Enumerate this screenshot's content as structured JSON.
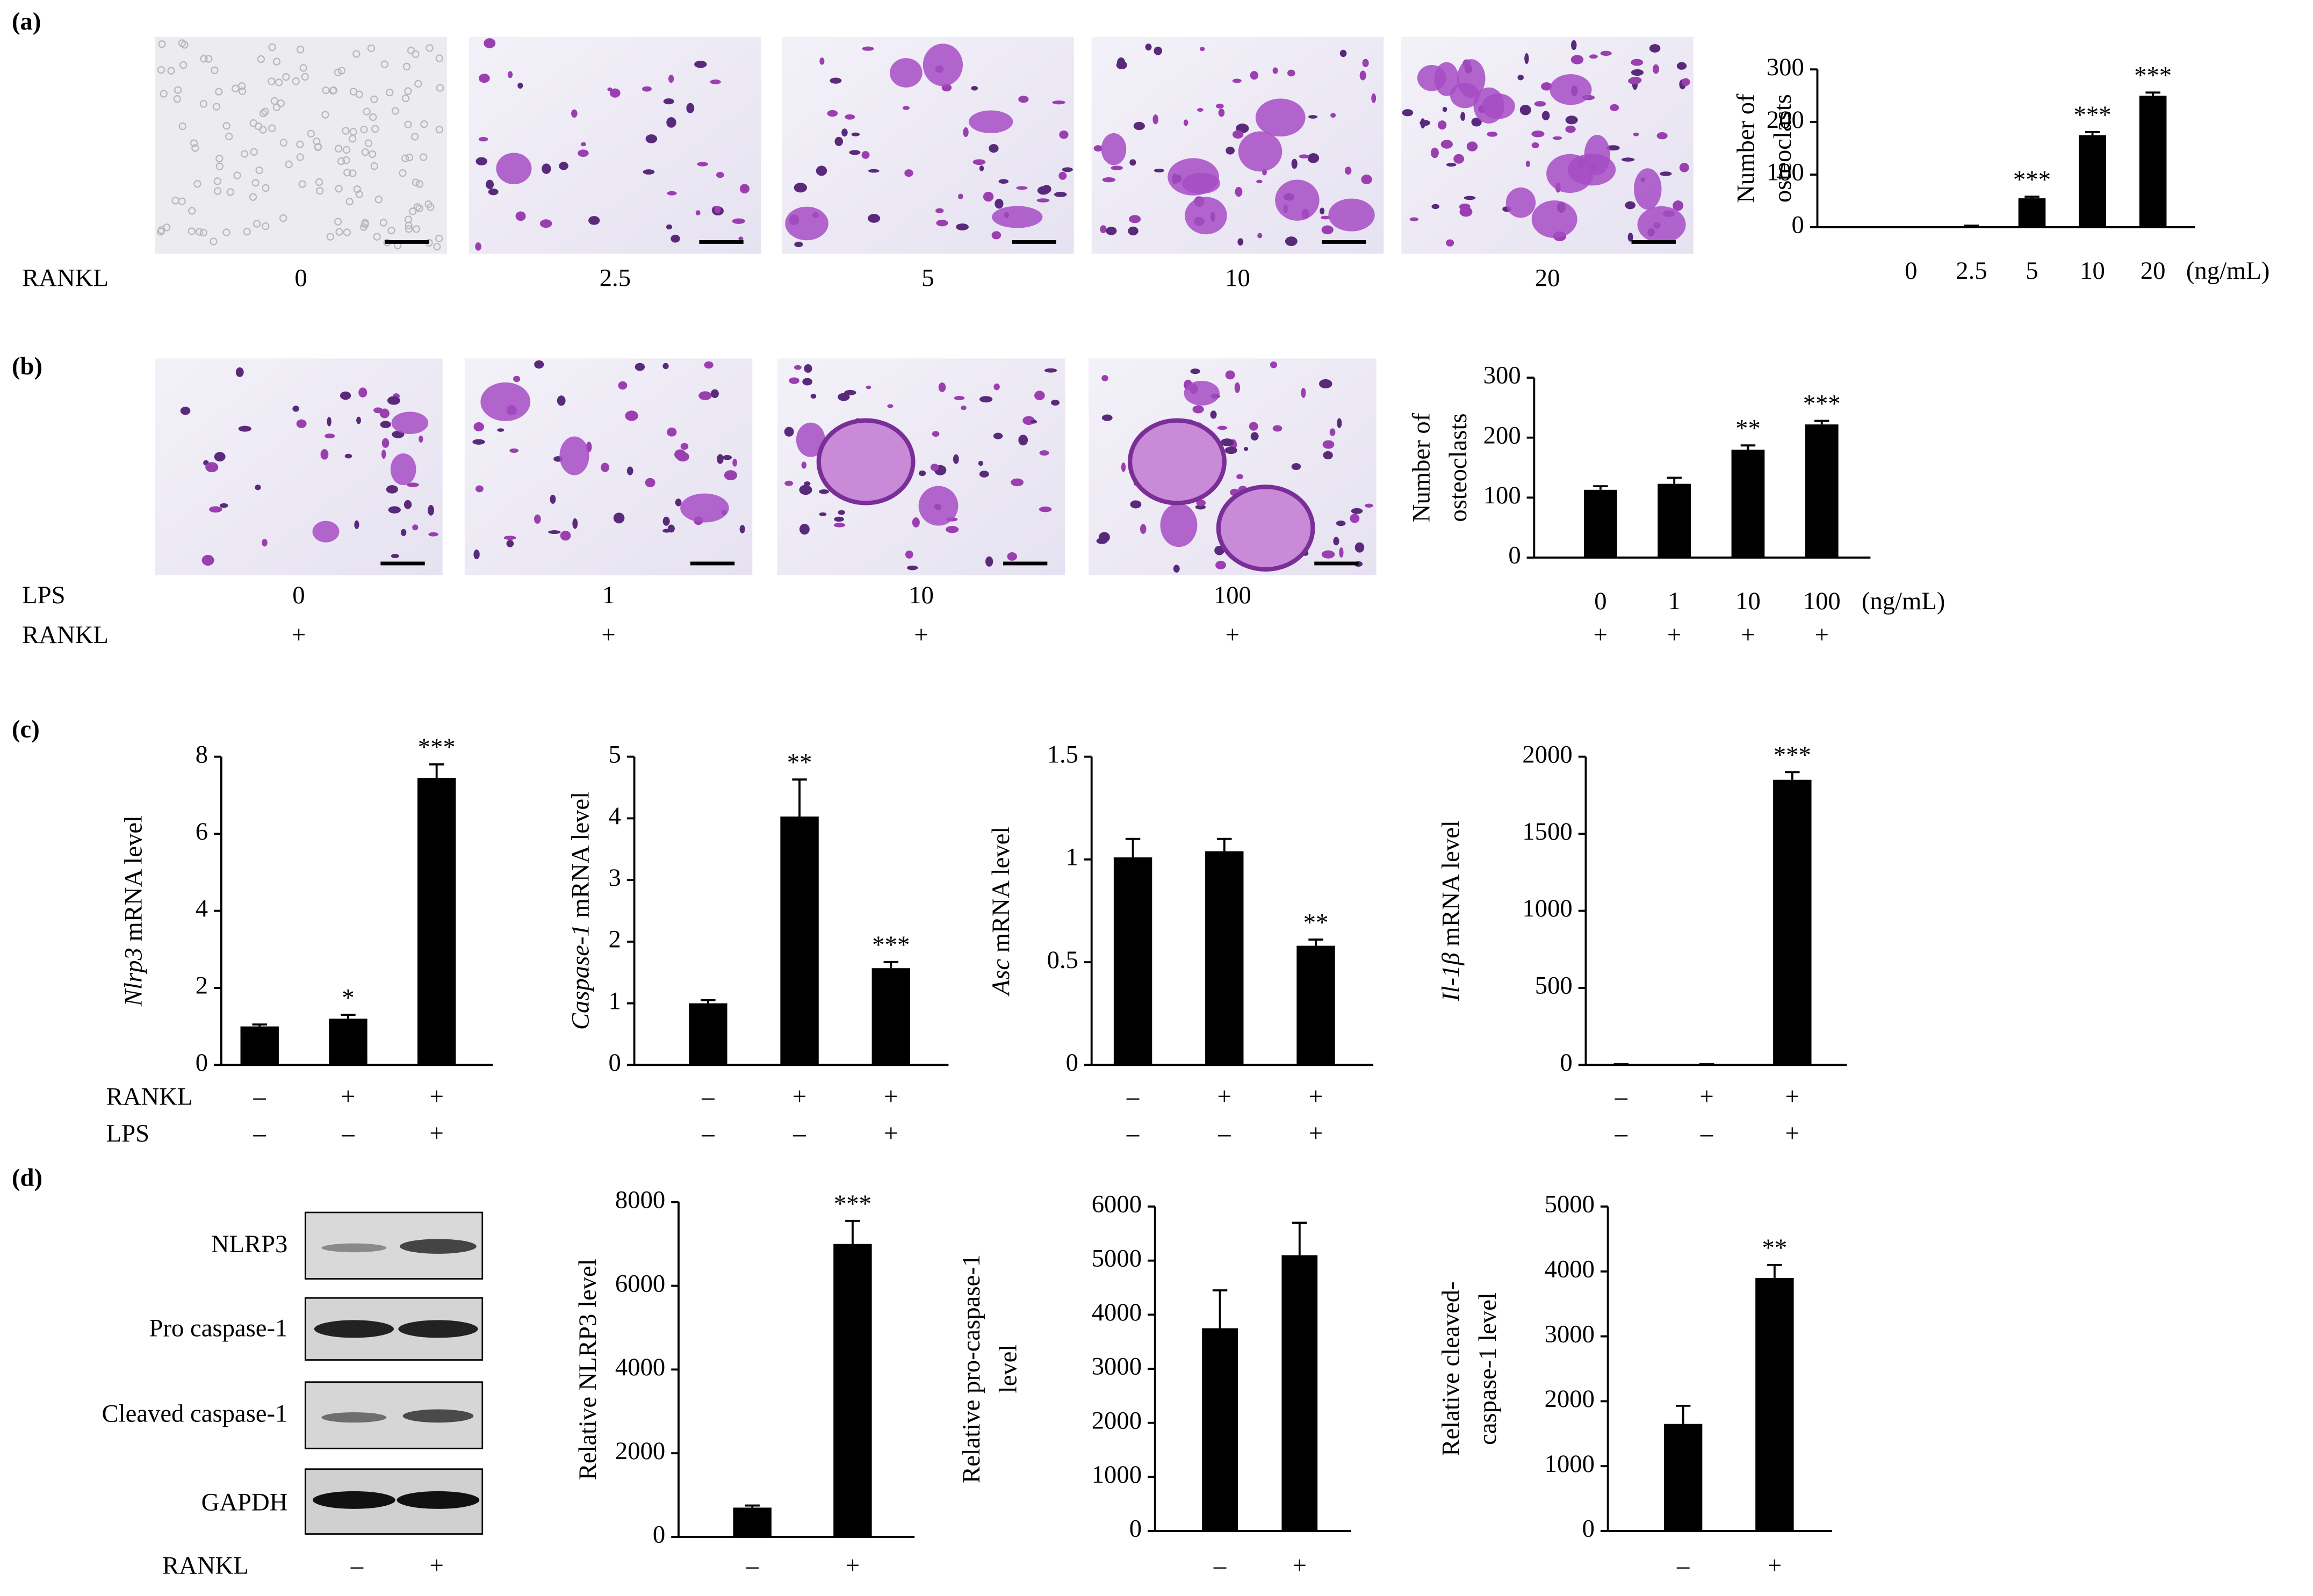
{
  "panel_labels": [
    "(a)",
    "(b)",
    "(c)",
    "(d)"
  ],
  "micrographs": [
    {
      "row_labels": [
        {
          "label": "RANKL",
          "values": [
            "0",
            "2.5",
            "5",
            "10",
            "20"
          ]
        }
      ]
    },
    {
      "row_labels": [
        {
          "label": "LPS",
          "values": [
            "0",
            "1",
            "10",
            "100"
          ]
        },
        {
          "label": "RANKL",
          "values": [
            "+",
            "+",
            "+",
            "+"
          ]
        }
      ]
    }
  ],
  "western_blot": {
    "bands": [
      "NLRP3",
      "Pro caspase-1",
      "Cleaved caspase-1",
      "GAPDH"
    ],
    "condition_label": "RANKL",
    "conditions": [
      "–",
      "+"
    ]
  },
  "chart_data": [
    {
      "type": "bar",
      "ylabel": [
        [
          {
            "text": "Number of"
          }
        ],
        [
          {
            "text": "osteoclasts"
          }
        ]
      ],
      "categories": [
        "0",
        "2.5",
        "5",
        "10",
        "20"
      ],
      "x_unit": "(ng/mL)",
      "values": [
        0,
        2,
        55,
        175,
        250
      ],
      "errors": [
        0,
        1,
        3,
        6,
        6
      ],
      "annotations": [
        null,
        null,
        "***",
        "***",
        "***"
      ],
      "ylim": [
        0,
        300
      ],
      "yticks": [
        0,
        100,
        200,
        300
      ],
      "color": "#000000"
    },
    {
      "type": "bar",
      "ylabel": [
        [
          {
            "text": "Number of"
          }
        ],
        [
          {
            "text": "osteoclasts"
          }
        ]
      ],
      "categories": [
        "0",
        "1",
        "10",
        "100"
      ],
      "x_unit": "(ng/mL)",
      "conditions": [
        {
          "values": [
            "+",
            "+",
            "+",
            "+"
          ]
        }
      ],
      "values": [
        113,
        123,
        180,
        222
      ],
      "errors": [
        6,
        10,
        7,
        6
      ],
      "annotations": [
        null,
        null,
        "**",
        "***"
      ],
      "ylim": [
        0,
        300
      ],
      "yticks": [
        0,
        100,
        200,
        300
      ],
      "color": "#000000"
    },
    {
      "type": "bar",
      "ylabel": [
        [
          {
            "text": "Nlrp3",
            "italic": true
          },
          {
            "text": " mRNA level"
          }
        ]
      ],
      "conditions": [
        {
          "label": "RANKL",
          "values": [
            "–",
            "+",
            "+"
          ]
        },
        {
          "label": "LPS",
          "values": [
            "–",
            "–",
            "+"
          ]
        }
      ],
      "values": [
        1,
        1.2,
        7.45
      ],
      "errors": [
        0.05,
        0.1,
        0.35
      ],
      "annotations": [
        null,
        "*",
        "***"
      ],
      "ylim": [
        0,
        8
      ],
      "yticks": [
        0,
        2,
        4,
        6,
        8
      ],
      "color": "#000000"
    },
    {
      "type": "bar",
      "ylabel": [
        [
          {
            "text": "Caspase-1",
            "italic": true
          },
          {
            "text": " mRNA level"
          }
        ]
      ],
      "conditions": [
        {
          "values": [
            "–",
            "+",
            "+"
          ]
        },
        {
          "values": [
            "–",
            "–",
            "+"
          ]
        }
      ],
      "values": [
        1,
        4.03,
        1.57
      ],
      "errors": [
        0.05,
        0.6,
        0.1
      ],
      "annotations": [
        null,
        "**",
        "***"
      ],
      "ylim": [
        0,
        5
      ],
      "yticks": [
        0,
        1,
        2,
        3,
        4,
        5
      ],
      "color": "#000000"
    },
    {
      "type": "bar",
      "ylabel": [
        [
          {
            "text": "Asc",
            "italic": true
          },
          {
            "text": " mRNA level"
          }
        ]
      ],
      "conditions": [
        {
          "values": [
            "–",
            "+",
            "+"
          ]
        },
        {
          "values": [
            "–",
            "–",
            "+"
          ]
        }
      ],
      "values": [
        1.01,
        1.04,
        0.58
      ],
      "errors": [
        0.09,
        0.06,
        0.03
      ],
      "annotations": [
        null,
        null,
        "**"
      ],
      "ylim": [
        0,
        1.5
      ],
      "yticks": [
        0,
        0.5,
        1,
        1.5
      ],
      "color": "#000000"
    },
    {
      "type": "bar",
      "ylabel": [
        [
          {
            "text": "Il-1β",
            "italic": true
          },
          {
            "text": " mRNA level"
          }
        ]
      ],
      "conditions": [
        {
          "values": [
            "–",
            "+",
            "+"
          ]
        },
        {
          "values": [
            "–",
            "–",
            "+"
          ]
        }
      ],
      "values": [
        5,
        5,
        1850
      ],
      "errors": [
        0,
        0,
        50
      ],
      "annotations": [
        null,
        null,
        "***"
      ],
      "ylim": [
        0,
        2000
      ],
      "yticks": [
        0,
        500,
        1000,
        1500,
        2000
      ],
      "color": "#000000"
    },
    {
      "type": "bar",
      "ylabel": [
        [
          {
            "text": "Relative NLRP3 level"
          }
        ]
      ],
      "categories": [
        "–",
        "+"
      ],
      "values": [
        700,
        7000
      ],
      "errors": [
        50,
        550
      ],
      "annotations": [
        null,
        "***"
      ],
      "ylim": [
        0,
        8000
      ],
      "yticks": [
        0,
        2000,
        4000,
        6000,
        8000
      ],
      "color": "#000000"
    },
    {
      "type": "bar",
      "ylabel": [
        [
          {
            "text": "Relative pro-caspase-1"
          }
        ],
        [
          {
            "text": "level"
          }
        ]
      ],
      "categories": [
        "–",
        "+"
      ],
      "values": [
        3750,
        5100
      ],
      "errors": [
        700,
        600
      ],
      "ylim": [
        0,
        6000
      ],
      "yticks": [
        0,
        1000,
        2000,
        3000,
        4000,
        5000,
        6000
      ],
      "color": "#000000"
    },
    {
      "type": "bar",
      "ylabel": [
        [
          {
            "text": "Relative cleaved-"
          }
        ],
        [
          {
            "text": "caspase-1 level"
          }
        ]
      ],
      "categories": [
        "–",
        "+"
      ],
      "values": [
        1650,
        3900
      ],
      "errors": [
        280,
        200
      ],
      "annotations": [
        null,
        "**"
      ],
      "ylim": [
        0,
        5000
      ],
      "yticks": [
        0,
        1000,
        2000,
        3000,
        4000,
        5000
      ],
      "color": "#000000"
    }
  ]
}
